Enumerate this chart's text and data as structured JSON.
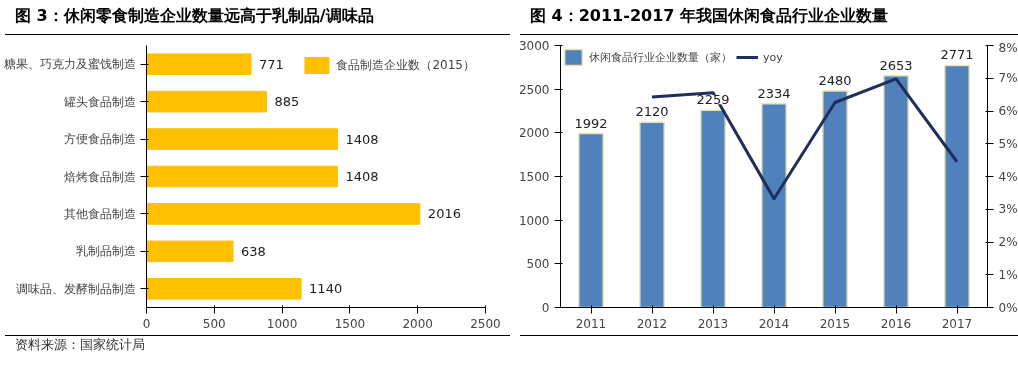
{
  "chart_data": [
    {
      "type": "bar",
      "orientation": "horizontal",
      "title": "图 3：休闲零食制造企业数量远高于乳制品/调味品",
      "categories": [
        "糖果、巧克力及蜜饯制造",
        "罐头食品制造",
        "方便食品制造",
        "焙烤食品制造",
        "其他食品制造",
        "乳制品制造",
        "调味品、发酵制品制造"
      ],
      "series": [
        {
          "name": "食品制造企业数（2015）",
          "color": "#ffc000",
          "values": [
            771,
            885,
            1408,
            1408,
            2016,
            638,
            1140
          ]
        }
      ],
      "xlim": [
        0,
        2500
      ],
      "xticks": [
        0,
        500,
        1000,
        1500,
        2000,
        2500
      ],
      "data_labels": true,
      "legend": "top right",
      "grid": false,
      "annotations": [
        "资料来源：国家统计局"
      ]
    },
    {
      "type": "bar",
      "title": "图 4：2011-2017 年我国休闲食品行业企业数量",
      "categories": [
        "2011",
        "2012",
        "2013",
        "2014",
        "2015",
        "2016",
        "2017"
      ],
      "series": [
        {
          "name": "休闲食品行业企业数量（家）",
          "color": "#4f81bd",
          "values": [
            1992,
            2120,
            2259,
            2334,
            2480,
            2653,
            2771
          ],
          "value_labels": [
            "1992",
            "2120",
            "2259",
            "2334",
            "2480",
            "2653",
            "2771"
          ]
        },
        {
          "name": "yoy",
          "type": "line",
          "axis": "y2",
          "color": "#1f2f5c",
          "values": [
            null,
            6.43,
            6.56,
            3.32,
            6.26,
            6.98,
            4.45
          ]
        }
      ],
      "ylim": [
        0,
        3000
      ],
      "yticks": [
        0,
        500,
        1000,
        1500,
        2000,
        2500,
        3000
      ],
      "y2lim": [
        0,
        8
      ],
      "y2ticks": [
        {
          "value": 0,
          "label": "0%"
        },
        {
          "value": 1,
          "label": "1%"
        },
        {
          "value": 2,
          "label": "2%"
        },
        {
          "value": 3,
          "label": "3%"
        },
        {
          "value": 4,
          "label": "4%"
        },
        {
          "value": 5,
          "label": "5%"
        },
        {
          "value": 6,
          "label": "6%"
        },
        {
          "value": 7,
          "label": "7%"
        },
        {
          "value": 8,
          "label": "8%"
        }
      ],
      "legend": "top left",
      "grid": false,
      "marker": "none",
      "line_style": "solid"
    }
  ]
}
